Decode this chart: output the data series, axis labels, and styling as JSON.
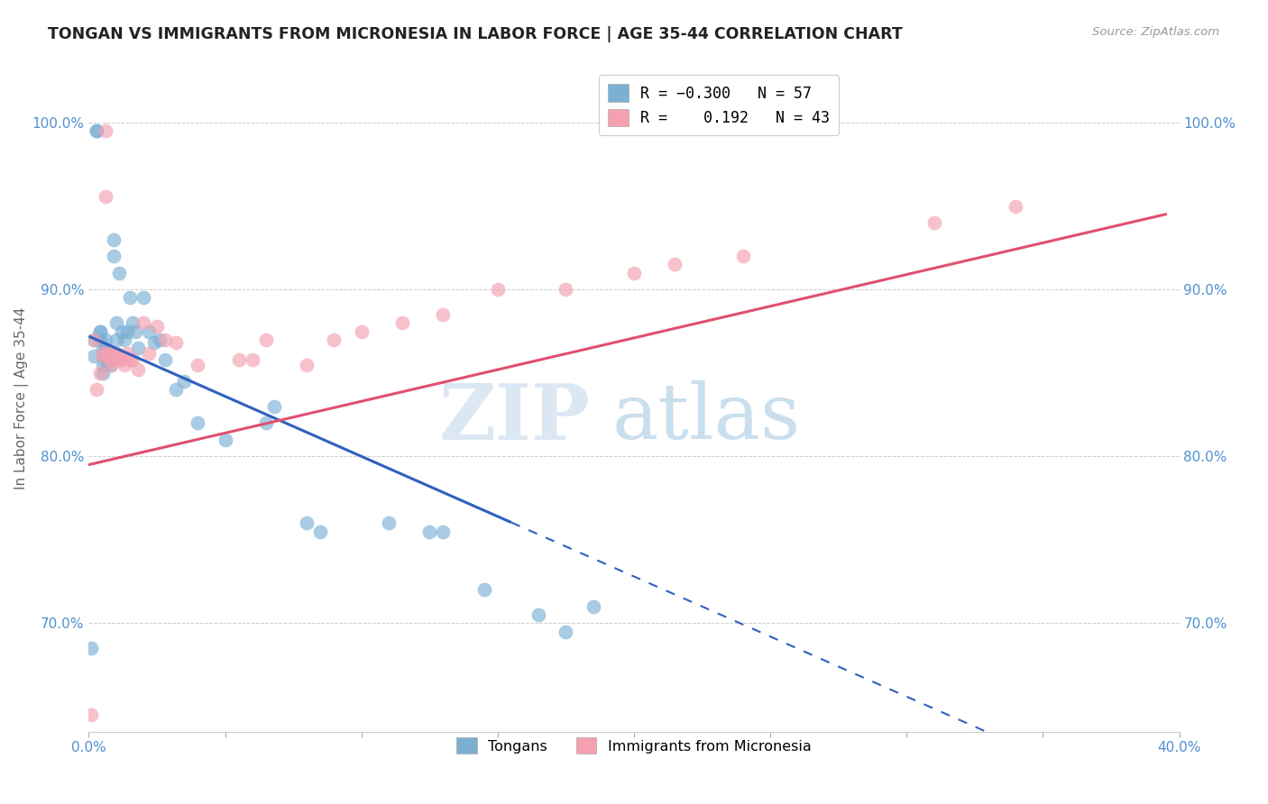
{
  "title": "TONGAN VS IMMIGRANTS FROM MICRONESIA IN LABOR FORCE | AGE 35-44 CORRELATION CHART",
  "source": "Source: ZipAtlas.com",
  "ylabel": "In Labor Force | Age 35-44",
  "xlim": [
    0.0,
    0.4
  ],
  "ylim": [
    0.635,
    1.035
  ],
  "yticks": [
    0.7,
    0.8,
    0.9,
    1.0
  ],
  "ytick_labels": [
    "70.0%",
    "80.0%",
    "90.0%",
    "100.0%"
  ],
  "xticks": [
    0.0,
    0.05,
    0.1,
    0.15,
    0.2,
    0.25,
    0.3,
    0.35,
    0.4
  ],
  "xtick_labels": [
    "0.0%",
    "",
    "",
    "",
    "",
    "",
    "",
    "",
    "40.0%"
  ],
  "blue_color": "#7bafd4",
  "pink_color": "#f4a0b0",
  "line_blue": "#3060c0",
  "line_pink": "#e05070",
  "watermark_zip": "ZIP",
  "watermark_atlas": "atlas",
  "blue_line_solid_end": 0.155,
  "blue_line_dash_start": 0.155,
  "blue_line_dash_end": 0.395,
  "pink_line_start": 0.0,
  "pink_line_end": 0.395,
  "blue_intercept": 0.872,
  "blue_slope": -0.72,
  "pink_intercept": 0.795,
  "pink_slope": 0.38,
  "tongan_x": [
    0.001,
    0.002,
    0.002,
    0.003,
    0.003,
    0.004,
    0.004,
    0.004,
    0.005,
    0.005,
    0.005,
    0.005,
    0.006,
    0.006,
    0.006,
    0.006,
    0.007,
    0.007,
    0.007,
    0.007,
    0.007,
    0.007,
    0.008,
    0.008,
    0.008,
    0.009,
    0.009,
    0.01,
    0.01,
    0.011,
    0.012,
    0.013,
    0.014,
    0.015,
    0.016,
    0.017,
    0.018,
    0.02,
    0.022,
    0.024,
    0.026,
    0.028,
    0.032,
    0.035,
    0.04,
    0.05,
    0.065,
    0.068,
    0.08,
    0.085,
    0.11,
    0.125,
    0.13,
    0.145,
    0.165,
    0.175,
    0.185
  ],
  "tongan_y": [
    0.685,
    0.86,
    0.87,
    0.995,
    0.995,
    0.875,
    0.87,
    0.875,
    0.85,
    0.86,
    0.855,
    0.865,
    0.87,
    0.865,
    0.863,
    0.858,
    0.86,
    0.862,
    0.86,
    0.857,
    0.858,
    0.863,
    0.855,
    0.858,
    0.86,
    0.92,
    0.93,
    0.87,
    0.88,
    0.91,
    0.875,
    0.87,
    0.875,
    0.895,
    0.88,
    0.875,
    0.865,
    0.895,
    0.875,
    0.868,
    0.87,
    0.858,
    0.84,
    0.845,
    0.82,
    0.81,
    0.82,
    0.83,
    0.76,
    0.755,
    0.76,
    0.755,
    0.755,
    0.72,
    0.705,
    0.695,
    0.71
  ],
  "micro_x": [
    0.001,
    0.002,
    0.003,
    0.004,
    0.005,
    0.005,
    0.006,
    0.006,
    0.007,
    0.007,
    0.008,
    0.008,
    0.009,
    0.01,
    0.01,
    0.011,
    0.012,
    0.013,
    0.014,
    0.015,
    0.016,
    0.018,
    0.02,
    0.022,
    0.025,
    0.028,
    0.032,
    0.04,
    0.055,
    0.06,
    0.065,
    0.08,
    0.09,
    0.1,
    0.115,
    0.13,
    0.15,
    0.175,
    0.2,
    0.215,
    0.24,
    0.31,
    0.34
  ],
  "micro_y": [
    0.645,
    0.87,
    0.84,
    0.85,
    0.86,
    0.862,
    0.956,
    0.995,
    0.86,
    0.862,
    0.855,
    0.858,
    0.862,
    0.86,
    0.862,
    0.858,
    0.858,
    0.855,
    0.862,
    0.858,
    0.858,
    0.852,
    0.88,
    0.862,
    0.878,
    0.87,
    0.868,
    0.855,
    0.858,
    0.858,
    0.87,
    0.855,
    0.87,
    0.875,
    0.88,
    0.885,
    0.9,
    0.9,
    0.91,
    0.915,
    0.92,
    0.94,
    0.95
  ]
}
